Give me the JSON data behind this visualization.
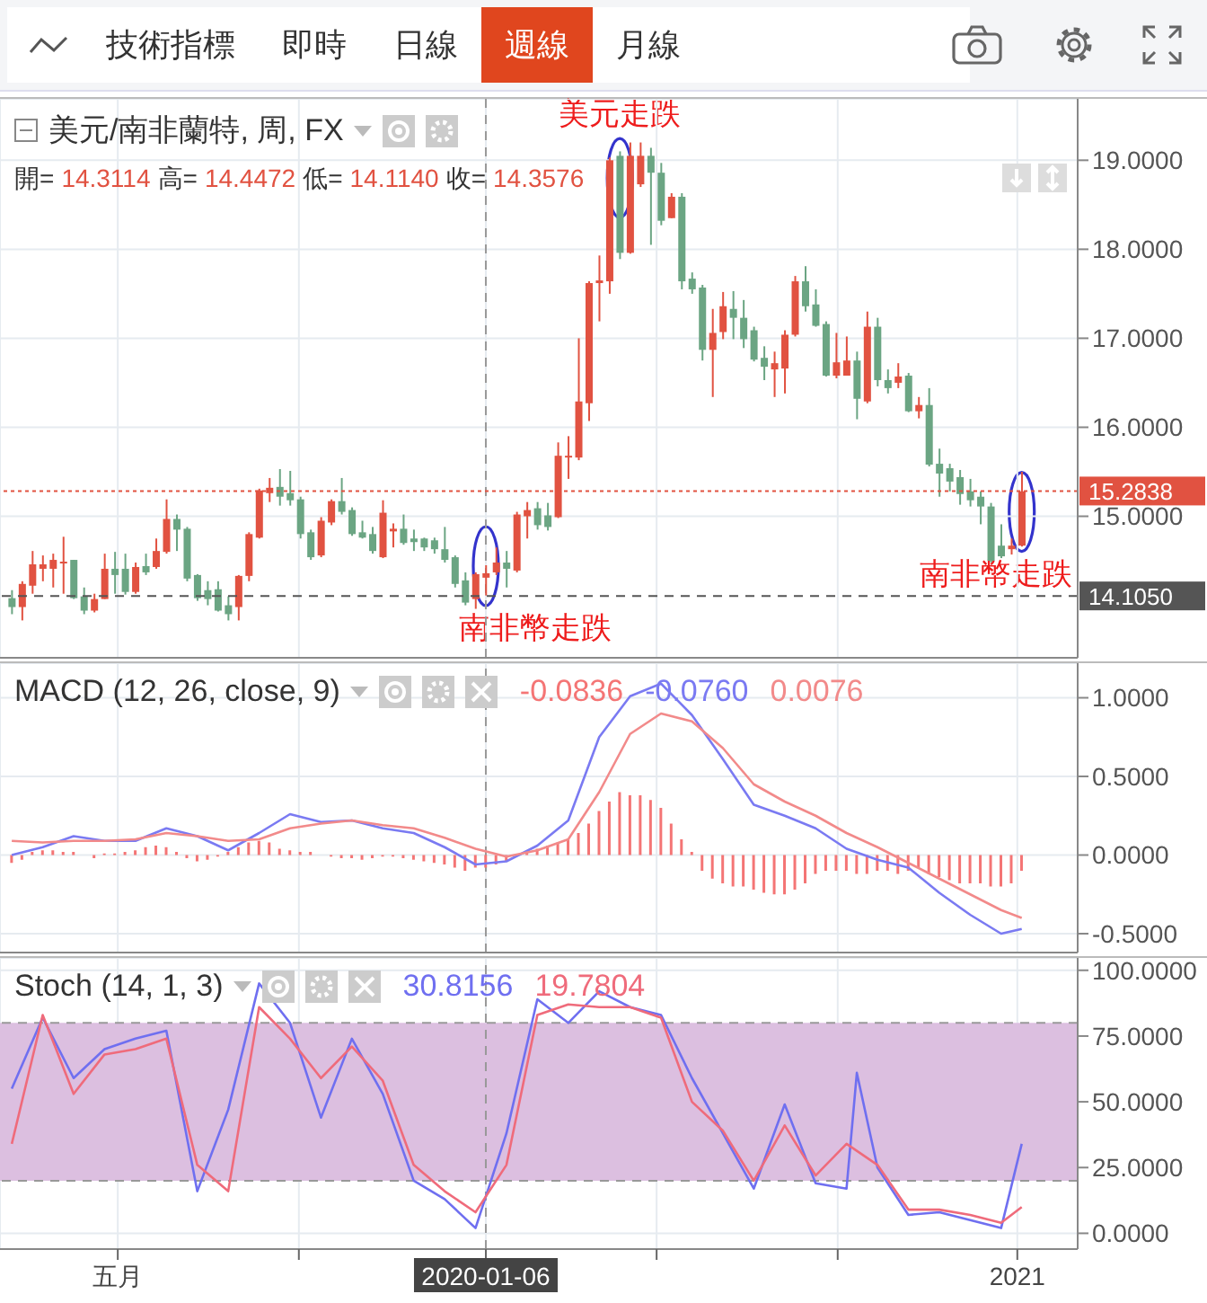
{
  "chart_data": [
    {
      "type": "candlestick",
      "title": "美元/南非蘭特, 周, FX",
      "annotations": [
        "技術指標",
        "即時",
        "日線",
        "週線",
        "月線",
        "開= 14.3114 高= 14.4472 低= 14.1140 收= 14.3576",
        {
          "text": "美元走跌",
          "x": "2020-04-06",
          "y": 18.8
        },
        {
          "text": "南非幣走跌",
          "x": "2020-01-06",
          "y": 14.44
        },
        {
          "text": "南非幣走跌",
          "x": "2021-01-04",
          "y": 15.05
        }
      ],
      "x": [
        "2019-02-18",
        "2019-02-25",
        "2019-03-04",
        "2019-03-11",
        "2019-03-18",
        "2019-03-25",
        "2019-04-01",
        "2019-04-08",
        "2019-04-15",
        "2019-04-22",
        "2019-04-29",
        "2019-05-06",
        "2019-05-13",
        "2019-05-20",
        "2019-05-27",
        "2019-06-03",
        "2019-06-10",
        "2019-06-17",
        "2019-06-24",
        "2019-07-01",
        "2019-07-08",
        "2019-07-15",
        "2019-07-22",
        "2019-07-29",
        "2019-08-05",
        "2019-08-12",
        "2019-08-19",
        "2019-08-26",
        "2019-09-02",
        "2019-09-09",
        "2019-09-16",
        "2019-09-23",
        "2019-09-30",
        "2019-10-07",
        "2019-10-14",
        "2019-10-21",
        "2019-10-28",
        "2019-11-04",
        "2019-11-11",
        "2019-11-18",
        "2019-11-25",
        "2019-12-02",
        "2019-12-09",
        "2019-12-16",
        "2019-12-23",
        "2019-12-30",
        "2020-01-06",
        "2020-01-13",
        "2020-01-20",
        "2020-01-27",
        "2020-02-03",
        "2020-02-10",
        "2020-02-17",
        "2020-02-24",
        "2020-03-02",
        "2020-03-09",
        "2020-03-16",
        "2020-03-23",
        "2020-03-30",
        "2020-04-06",
        "2020-04-13",
        "2020-04-20",
        "2020-04-27",
        "2020-05-04",
        "2020-05-11",
        "2020-05-18",
        "2020-05-25",
        "2020-06-01",
        "2020-06-08",
        "2020-06-15",
        "2020-06-22",
        "2020-06-29",
        "2020-07-06",
        "2020-07-13",
        "2020-07-20",
        "2020-07-27",
        "2020-08-03",
        "2020-08-10",
        "2020-08-17",
        "2020-08-24",
        "2020-08-31",
        "2020-09-07",
        "2020-09-14",
        "2020-09-21",
        "2020-09-28",
        "2020-10-05",
        "2020-10-12",
        "2020-10-19",
        "2020-10-26",
        "2020-11-02",
        "2020-11-09",
        "2020-11-16",
        "2020-11-23",
        "2020-11-30",
        "2020-12-07",
        "2020-12-14",
        "2020-12-21",
        "2020-12-28",
        "2021-01-04"
      ],
      "ohlc": [
        [
          14.08,
          14.17,
          13.9,
          13.98
        ],
        [
          13.98,
          14.27,
          13.83,
          14.24
        ],
        [
          14.22,
          14.61,
          14.13,
          14.46
        ],
        [
          14.41,
          14.56,
          14.27,
          14.46
        ],
        [
          14.41,
          14.58,
          14.2,
          14.51
        ],
        [
          14.47,
          14.77,
          14.13,
          14.49
        ],
        [
          14.51,
          14.51,
          14.07,
          14.08
        ],
        [
          14.1,
          14.2,
          13.9,
          13.94
        ],
        [
          13.94,
          14.13,
          13.92,
          14.07
        ],
        [
          14.07,
          14.58,
          14.07,
          14.41
        ],
        [
          14.41,
          14.6,
          14.13,
          14.34
        ],
        [
          14.41,
          14.58,
          14.12,
          14.15
        ],
        [
          14.15,
          14.48,
          14.13,
          14.43
        ],
        [
          14.44,
          14.58,
          14.34,
          14.37
        ],
        [
          14.43,
          14.75,
          14.41,
          14.61
        ],
        [
          14.6,
          15.19,
          14.58,
          14.97
        ],
        [
          14.97,
          15.02,
          14.61,
          14.85
        ],
        [
          14.86,
          14.88,
          14.27,
          14.3
        ],
        [
          14.34,
          14.35,
          14.05,
          14.08
        ],
        [
          14.17,
          14.27,
          14.0,
          14.07
        ],
        [
          14.18,
          14.27,
          13.93,
          13.94
        ],
        [
          14.0,
          14.1,
          13.83,
          13.9
        ],
        [
          13.98,
          14.34,
          13.83,
          14.33
        ],
        [
          14.33,
          14.82,
          14.27,
          14.8
        ],
        [
          14.76,
          15.31,
          14.75,
          15.29
        ],
        [
          15.26,
          15.43,
          15.16,
          15.32
        ],
        [
          15.33,
          15.53,
          15.12,
          15.22
        ],
        [
          15.26,
          15.51,
          15.12,
          15.18
        ],
        [
          15.19,
          15.22,
          14.75,
          14.8
        ],
        [
          14.82,
          14.85,
          14.51,
          14.54
        ],
        [
          14.56,
          14.99,
          14.54,
          14.95
        ],
        [
          14.93,
          15.19,
          14.9,
          15.17
        ],
        [
          15.17,
          15.43,
          15.02,
          15.05
        ],
        [
          15.07,
          15.1,
          14.78,
          14.8
        ],
        [
          14.82,
          14.95,
          14.75,
          14.76
        ],
        [
          14.8,
          14.88,
          14.58,
          14.61
        ],
        [
          14.54,
          15.18,
          14.53,
          15.04
        ],
        [
          14.83,
          14.92,
          14.65,
          14.86
        ],
        [
          14.86,
          15.02,
          14.68,
          14.7
        ],
        [
          14.75,
          14.85,
          14.61,
          14.71
        ],
        [
          14.75,
          14.76,
          14.61,
          14.65
        ],
        [
          14.73,
          14.76,
          14.58,
          14.63
        ],
        [
          14.63,
          14.88,
          14.48,
          14.51
        ],
        [
          14.54,
          14.56,
          14.2,
          14.24
        ],
        [
          14.28,
          14.37,
          14.0,
          14.03
        ],
        [
          14.07,
          14.37,
          13.96,
          14.35
        ],
        [
          14.31,
          14.45,
          14.11,
          14.36
        ],
        [
          14.37,
          14.65,
          14.34,
          14.48
        ],
        [
          14.48,
          14.61,
          14.2,
          14.41
        ],
        [
          14.39,
          15.05,
          14.37,
          15.02
        ],
        [
          15.0,
          15.16,
          14.75,
          15.07
        ],
        [
          15.09,
          15.16,
          14.85,
          14.9
        ],
        [
          15.01,
          15.15,
          14.84,
          14.88
        ],
        [
          14.99,
          15.83,
          14.98,
          15.68
        ],
        [
          15.66,
          15.9,
          15.42,
          15.68
        ],
        [
          15.66,
          17.0,
          15.63,
          16.29
        ],
        [
          16.27,
          17.64,
          16.07,
          17.62
        ],
        [
          17.62,
          17.93,
          17.19,
          17.65
        ],
        [
          17.64,
          19.03,
          17.5,
          19.0
        ],
        [
          19.05,
          19.1,
          17.89,
          17.96
        ],
        [
          17.96,
          19.2,
          17.95,
          19.05
        ],
        [
          18.73,
          19.2,
          18.7,
          19.05
        ],
        [
          19.05,
          19.14,
          18.05,
          18.86
        ],
        [
          18.86,
          18.97,
          18.27,
          18.32
        ],
        [
          18.35,
          18.63,
          18.35,
          18.59
        ],
        [
          18.59,
          18.63,
          17.55,
          17.64
        ],
        [
          17.67,
          17.74,
          17.5,
          17.55
        ],
        [
          17.57,
          17.6,
          16.75,
          16.87
        ],
        [
          16.87,
          17.33,
          16.34,
          17.06
        ],
        [
          17.07,
          17.52,
          16.99,
          17.36
        ],
        [
          17.33,
          17.53,
          16.99,
          17.23
        ],
        [
          17.23,
          17.43,
          16.89,
          16.99
        ],
        [
          17.09,
          17.13,
          16.74,
          16.76
        ],
        [
          16.78,
          16.91,
          16.53,
          16.68
        ],
        [
          16.65,
          16.85,
          16.34,
          16.72
        ],
        [
          16.66,
          17.09,
          16.38,
          17.04
        ],
        [
          17.04,
          17.7,
          17.02,
          17.64
        ],
        [
          17.64,
          17.81,
          17.3,
          17.36
        ],
        [
          17.38,
          17.55,
          17.13,
          17.14
        ],
        [
          17.16,
          17.19,
          16.57,
          16.58
        ],
        [
          16.58,
          17.06,
          16.55,
          16.73
        ],
        [
          16.58,
          17.02,
          16.58,
          16.75
        ],
        [
          16.75,
          16.85,
          16.09,
          16.32
        ],
        [
          16.29,
          17.3,
          16.27,
          17.13
        ],
        [
          17.13,
          17.23,
          16.46,
          16.53
        ],
        [
          16.53,
          16.65,
          16.38,
          16.44
        ],
        [
          16.5,
          16.72,
          16.44,
          16.57
        ],
        [
          16.58,
          16.61,
          16.17,
          16.18
        ],
        [
          16.18,
          16.34,
          16.1,
          16.25
        ],
        [
          16.25,
          16.44,
          15.56,
          15.58
        ],
        [
          15.59,
          15.76,
          15.22,
          15.48
        ],
        [
          15.54,
          15.59,
          15.28,
          15.39
        ],
        [
          15.44,
          15.52,
          15.13,
          15.25
        ],
        [
          15.28,
          15.42,
          15.11,
          15.18
        ],
        [
          15.22,
          15.28,
          14.91,
          15.11
        ],
        [
          15.11,
          15.15,
          14.48,
          14.5
        ],
        [
          14.67,
          14.91,
          14.53,
          14.55
        ],
        [
          14.63,
          14.75,
          14.57,
          14.67
        ],
        [
          14.67,
          15.5,
          14.66,
          15.28
        ]
      ],
      "colors": [
        "#6ba583",
        "#e15241",
        "#e15241",
        "#e15241",
        "#e15241",
        "#e15241",
        "#6ba583",
        "#6ba583",
        "#e15241",
        "#e15241",
        "#6ba583",
        "#6ba583",
        "#e15241",
        "#6ba583",
        "#e15241",
        "#e15241",
        "#6ba583",
        "#6ba583",
        "#6ba583",
        "#6ba583",
        "#6ba583",
        "#6ba583",
        "#e15241",
        "#e15241",
        "#e15241",
        "#e15241",
        "#6ba583",
        "#6ba583",
        "#6ba583",
        "#6ba583",
        "#e15241",
        "#e15241",
        "#6ba583",
        "#6ba583",
        "#6ba583",
        "#6ba583",
        "#e15241",
        "#e15241",
        "#6ba583",
        "#6ba583",
        "#6ba583",
        "#6ba583",
        "#6ba583",
        "#6ba583",
        "#6ba583",
        "#e15241",
        "#e15241",
        "#e15241",
        "#6ba583",
        "#e15241",
        "#e15241",
        "#6ba583",
        "#6ba583",
        "#e15241",
        "#e15241",
        "#e15241",
        "#e15241",
        "#e15241",
        "#e15241",
        "#6ba583",
        "#e15241",
        "#e15241",
        "#6ba583",
        "#6ba583",
        "#e15241",
        "#6ba583",
        "#6ba583",
        "#6ba583",
        "#e15241",
        "#e15241",
        "#6ba583",
        "#6ba583",
        "#6ba583",
        "#6ba583",
        "#e15241",
        "#e15241",
        "#e15241",
        "#6ba583",
        "#6ba583",
        "#6ba583",
        "#e15241",
        "#e15241",
        "#6ba583",
        "#e15241",
        "#6ba583",
        "#6ba583",
        "#e15241",
        "#6ba583",
        "#e15241",
        "#6ba583",
        "#6ba583",
        "#6ba583",
        "#6ba583",
        "#6ba583",
        "#6ba583",
        "#6ba583",
        "#6ba583",
        "#e15241",
        "#e15241"
      ],
      "xlim": [
        "2019-02-10",
        "2021-02-11"
      ],
      "xticks": [
        {
          "value": "2019-05-01",
          "label": null
        },
        {
          "value": "2019-09-01",
          "label": null
        },
        {
          "value": "2020-01-06",
          "label": null
        },
        {
          "value": "2020-05-01",
          "label": null
        },
        {
          "value": "2020-09-01",
          "label": null
        },
        {
          "value": "2021-01-01",
          "label": null
        }
      ],
      "ylim": [
        13.41,
        19.69
      ],
      "yticks": [
        {
          "value": 15,
          "label": "15.0000"
        },
        {
          "value": 16,
          "label": "16.0000"
        },
        {
          "value": 17,
          "label": "17.0000"
        },
        {
          "value": 18,
          "label": "18.0000"
        },
        {
          "value": 19,
          "label": "19.0000"
        }
      ],
      "ref_lines": [
        {
          "axis": "y",
          "value": 15.2838,
          "label": "15.2838",
          "color": "#e15241",
          "line_style": "dotted"
        },
        {
          "axis": "y",
          "value": 14.105,
          "label": "14.1050",
          "color": "#555555",
          "line_style": "dashed"
        },
        {
          "axis": "x",
          "value": "2020-01-06",
          "color": "#999999",
          "line_style": "dashed"
        }
      ],
      "grid": true,
      "tick_labels": "y"
    },
    {
      "type": "line",
      "title": "MACD (12, 26, close, 9)",
      "annotations": [
        "-0.0836",
        "-0.0760",
        "0.0076"
      ],
      "x": [
        "2019-02-18",
        "2019-02-25",
        "2019-03-04",
        "2019-03-11",
        "2019-03-18",
        "2019-03-25",
        "2019-04-01",
        "2019-04-08",
        "2019-04-15",
        "2019-04-22",
        "2019-04-29",
        "2019-05-06",
        "2019-05-13",
        "2019-05-20",
        "2019-05-27",
        "2019-06-03",
        "2019-06-10",
        "2019-06-17",
        "2019-06-24",
        "2019-07-01",
        "2019-07-08",
        "2019-07-15",
        "2019-07-22",
        "2019-07-29",
        "2019-08-05",
        "2019-08-12",
        "2019-08-19",
        "2019-08-26",
        "2019-09-02",
        "2019-09-09",
        "2019-09-16",
        "2019-09-23",
        "2019-09-30",
        "2019-10-07",
        "2019-10-14",
        "2019-10-21",
        "2019-10-28",
        "2019-11-04",
        "2019-11-11",
        "2019-11-18",
        "2019-11-25",
        "2019-12-02",
        "2019-12-09",
        "2019-12-16",
        "2019-12-23",
        "2019-12-30",
        "2020-01-06",
        "2020-01-13",
        "2020-01-20",
        "2020-01-27",
        "2020-02-03",
        "2020-02-10",
        "2020-02-17",
        "2020-02-24",
        "2020-03-02",
        "2020-03-09",
        "2020-03-16",
        "2020-03-23",
        "2020-03-30",
        "2020-04-06",
        "2020-04-13",
        "2020-04-20",
        "2020-04-27",
        "2020-05-04",
        "2020-05-11",
        "2020-05-18",
        "2020-05-25",
        "2020-06-01",
        "2020-06-08",
        "2020-06-15",
        "2020-06-22",
        "2020-06-29",
        "2020-07-06",
        "2020-07-13",
        "2020-07-20",
        "2020-07-27",
        "2020-08-03",
        "2020-08-10",
        "2020-08-17",
        "2020-08-24",
        "2020-08-31",
        "2020-09-07",
        "2020-09-14",
        "2020-09-21",
        "2020-09-28",
        "2020-10-05",
        "2020-10-12",
        "2020-10-19",
        "2020-10-26",
        "2020-11-02",
        "2020-11-09",
        "2020-11-16",
        "2020-11-23",
        "2020-11-30",
        "2020-12-07",
        "2020-12-14",
        "2020-12-21",
        "2020-12-28",
        "2021-01-04"
      ],
      "series": [
        {
          "type": "bar",
          "color": "#f47575",
          "values": [
            -0.05,
            -0.03,
            0.02,
            0.03,
            0.03,
            0.02,
            0.02,
            0,
            -0.02,
            0.01,
            0.01,
            0.02,
            0.03,
            0.05,
            0.06,
            0.05,
            0.02,
            -0.02,
            -0.04,
            -0.03,
            -0.01,
            0.02,
            0.05,
            0.08,
            0.09,
            0.08,
            0.04,
            0.03,
            0.02,
            0.02,
            0,
            -0.01,
            -0.02,
            -0.02,
            -0.03,
            -0.02,
            -0.01,
            -0.01,
            -0.02,
            -0.03,
            -0.04,
            -0.05,
            -0.06,
            -0.08,
            -0.1,
            -0.08,
            -0.08,
            -0.06,
            -0.04,
            0,
            0.02,
            0.04,
            0.06,
            0.08,
            0.1,
            0.14,
            0.2,
            0.28,
            0.34,
            0.4,
            0.38,
            0.38,
            0.35,
            0.3,
            0.2,
            0.1,
            0.02,
            -0.1,
            -0.15,
            -0.18,
            -0.2,
            -0.2,
            -0.22,
            -0.24,
            -0.25,
            -0.25,
            -0.22,
            -0.18,
            -0.12,
            -0.1,
            -0.1,
            -0.1,
            -0.12,
            -0.12,
            -0.1,
            -0.1,
            -0.12,
            -0.1,
            -0.08,
            -0.12,
            -0.14,
            -0.16,
            -0.18,
            -0.18,
            -0.18,
            -0.2,
            -0.2,
            -0.18,
            -0.1
          ]
        },
        {
          "type": "line",
          "color": "#7a7af2",
          "x": [
            "2019-02-18",
            "2019-03-11",
            "2019-04-01",
            "2019-04-22",
            "2019-05-13",
            "2019-06-03",
            "2019-06-24",
            "2019-07-15",
            "2019-08-05",
            "2019-08-26",
            "2019-09-16",
            "2019-10-07",
            "2019-10-28",
            "2019-11-18",
            "2019-12-09",
            "2019-12-30",
            "2020-01-20",
            "2020-02-10",
            "2020-03-02",
            "2020-03-23",
            "2020-04-13",
            "2020-05-04",
            "2020-05-25",
            "2020-06-15",
            "2020-07-06",
            "2020-07-27",
            "2020-08-17",
            "2020-09-07",
            "2020-09-28",
            "2020-10-19",
            "2020-11-09",
            "2020-11-30",
            "2020-12-21",
            "2021-01-04"
          ],
          "values": [
            0,
            0.05,
            0.12,
            0.09,
            0.09,
            0.17,
            0.12,
            0.03,
            0.14,
            0.26,
            0.21,
            0.22,
            0.17,
            0.14,
            0.05,
            -0.06,
            -0.04,
            0.06,
            0.22,
            0.75,
            1.01,
            1.09,
            0.89,
            0.61,
            0.32,
            0.25,
            0.17,
            0.04,
            -0.03,
            -0.08,
            -0.24,
            -0.38,
            -0.5,
            -0.47
          ]
        },
        {
          "type": "line",
          "color": "#f28a8a",
          "x": [
            "2019-02-18",
            "2019-03-11",
            "2019-04-01",
            "2019-04-22",
            "2019-05-13",
            "2019-06-03",
            "2019-06-24",
            "2019-07-15",
            "2019-08-05",
            "2019-08-26",
            "2019-09-16",
            "2019-10-07",
            "2019-10-28",
            "2019-11-18",
            "2019-12-09",
            "2019-12-30",
            "2020-01-20",
            "2020-02-10",
            "2020-03-02",
            "2020-03-23",
            "2020-04-13",
            "2020-05-04",
            "2020-05-25",
            "2020-06-15",
            "2020-07-06",
            "2020-07-27",
            "2020-08-17",
            "2020-09-07",
            "2020-09-28",
            "2020-10-19",
            "2020-11-09",
            "2020-11-30",
            "2020-12-21",
            "2021-01-04"
          ],
          "values": [
            0.09,
            0.08,
            0.09,
            0.09,
            0.1,
            0.14,
            0.12,
            0.09,
            0.1,
            0.17,
            0.2,
            0.22,
            0.19,
            0.17,
            0.11,
            0.04,
            -0.01,
            0.03,
            0.1,
            0.4,
            0.77,
            0.9,
            0.85,
            0.68,
            0.45,
            0.34,
            0.25,
            0.14,
            0.05,
            -0.05,
            -0.15,
            -0.25,
            -0.35,
            -0.4
          ]
        }
      ],
      "xlim": [
        "2019-02-10",
        "2021-02-11"
      ],
      "xticks": [
        {
          "value": "2019-05-01",
          "label": null
        },
        {
          "value": "2019-09-01",
          "label": null
        },
        {
          "value": "2020-01-06",
          "label": null
        },
        {
          "value": "2020-05-01",
          "label": null
        },
        {
          "value": "2020-09-01",
          "label": null
        },
        {
          "value": "2021-01-01",
          "label": null
        }
      ],
      "ylim": [
        -0.62,
        1.22
      ],
      "yticks": [
        {
          "value": -0.5,
          "label": "-0.5000"
        },
        {
          "value": 0,
          "label": "0.0000"
        },
        {
          "value": 0.5,
          "label": "0.5000"
        },
        {
          "value": 1,
          "label": "1.0000"
        }
      ],
      "ref_lines": [
        {
          "axis": "x",
          "value": "2020-01-06",
          "color": "#999999",
          "line_style": "dashed"
        }
      ],
      "grid": true,
      "tick_labels": "y"
    },
    {
      "type": "line",
      "title": "Stoch (14, 1, 3)",
      "annotations": [
        "30.8156",
        "19.7804"
      ],
      "series": [
        {
          "type": "line",
          "color": "#6f6ff0",
          "x": [
            "2019-02-18",
            "2019-03-11",
            "2019-04-01",
            "2019-04-22",
            "2019-05-13",
            "2019-06-03",
            "2019-06-24",
            "2019-07-15",
            "2019-08-05",
            "2019-08-26",
            "2019-09-16",
            "2019-10-07",
            "2019-10-28",
            "2019-11-18",
            "2019-12-09",
            "2019-12-30",
            "2020-01-20",
            "2020-02-10",
            "2020-03-02",
            "2020-03-23",
            "2020-04-13",
            "2020-05-04",
            "2020-05-25",
            "2020-06-15",
            "2020-07-06",
            "2020-07-27",
            "2020-08-17",
            "2020-09-07",
            "2020-09-14",
            "2020-09-28",
            "2020-10-19",
            "2020-11-09",
            "2020-11-30",
            "2020-12-21",
            "2021-01-04"
          ],
          "values": [
            55,
            82,
            59,
            70,
            74,
            77,
            16,
            47,
            95,
            80,
            44,
            74,
            53,
            20,
            13,
            2,
            38,
            89,
            80,
            92,
            86,
            83,
            59,
            38,
            17,
            49,
            19,
            17,
            61,
            25,
            7,
            8,
            5,
            2,
            34
          ]
        },
        {
          "type": "line",
          "color": "#ef6b7b",
          "x": [
            "2019-02-18",
            "2019-03-11",
            "2019-04-01",
            "2019-04-22",
            "2019-05-13",
            "2019-06-03",
            "2019-06-24",
            "2019-07-15",
            "2019-08-05",
            "2019-08-26",
            "2019-09-16",
            "2019-10-07",
            "2019-10-28",
            "2019-11-18",
            "2019-12-09",
            "2019-12-30",
            "2020-01-20",
            "2020-02-10",
            "2020-03-02",
            "2020-03-23",
            "2020-04-13",
            "2020-05-04",
            "2020-05-25",
            "2020-06-15",
            "2020-07-06",
            "2020-07-27",
            "2020-08-17",
            "2020-09-07",
            "2020-09-28",
            "2020-10-19",
            "2020-11-09",
            "2020-11-30",
            "2020-12-21",
            "2021-01-04"
          ],
          "values": [
            34,
            83,
            53,
            68,
            70,
            74,
            26,
            16,
            86,
            74,
            59,
            71,
            58,
            26,
            16,
            8,
            26,
            83,
            87,
            86,
            86,
            82,
            50,
            39,
            20,
            41,
            22,
            34,
            26,
            9,
            9,
            7,
            4,
            10
          ]
        }
      ],
      "xlim": [
        "2019-02-10",
        "2021-02-11"
      ],
      "xticks": [
        {
          "value": "2019-05-01",
          "label": "五月"
        },
        {
          "value": "2019-09-01",
          "label": null
        },
        {
          "value": "2020-01-06",
          "label": "2020-01-06"
        },
        {
          "value": "2020-05-01",
          "label": null
        },
        {
          "value": "2020-09-01",
          "label": null
        },
        {
          "value": "2021-01-01",
          "label": "2021"
        }
      ],
      "ylim": [
        -6,
        104.7
      ],
      "yticks": [
        {
          "value": 0,
          "label": "0.0000"
        },
        {
          "value": 25,
          "label": "25.0000"
        },
        {
          "value": 50,
          "label": "50.0000"
        },
        {
          "value": 75,
          "label": "75.0000"
        },
        {
          "value": 100,
          "label": "100.0000"
        }
      ],
      "bands": [
        {
          "axis": "y",
          "from": 20,
          "to": 80,
          "color": "#dcbfe0"
        }
      ],
      "ref_lines": [
        {
          "axis": "y",
          "value": 20,
          "color": "#999999",
          "line_style": "dashed"
        },
        {
          "axis": "y",
          "value": 80,
          "color": "#999999",
          "line_style": "dashed"
        },
        {
          "axis": "x",
          "value": "2020-01-06",
          "color": "#999999",
          "line_style": "dashed"
        }
      ],
      "grid": true
    }
  ]
}
